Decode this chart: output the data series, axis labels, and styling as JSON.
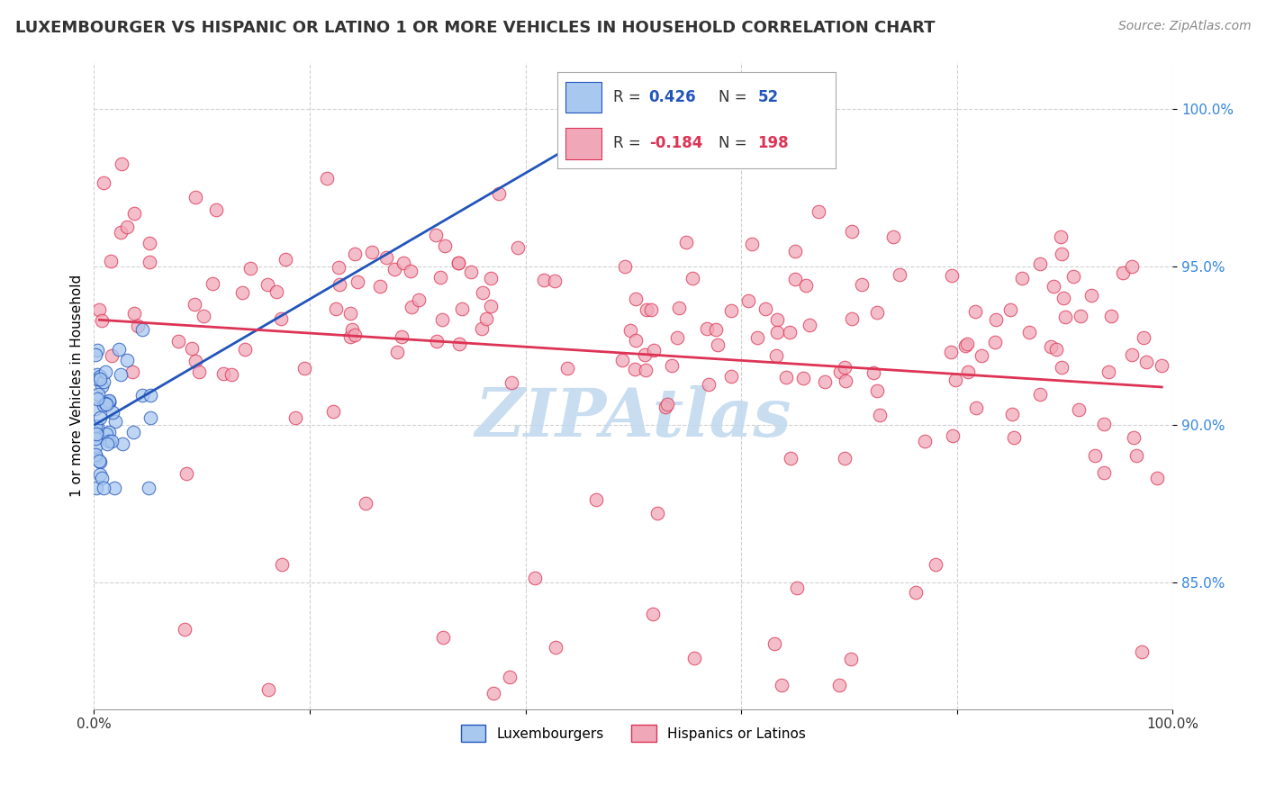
{
  "title": "LUXEMBOURGER VS HISPANIC OR LATINO 1 OR MORE VEHICLES IN HOUSEHOLD CORRELATION CHART",
  "source": "Source: ZipAtlas.com",
  "ylabel": "1 or more Vehicles in Household",
  "xlim": [
    0.0,
    100.0
  ],
  "ylim": [
    81.0,
    101.5
  ],
  "blue_R": 0.426,
  "blue_N": 52,
  "pink_R": -0.184,
  "pink_N": 198,
  "blue_color": "#a8c8f0",
  "pink_color": "#f0a8b8",
  "blue_line_color": "#2255bb",
  "pink_line_color": "#dd3355",
  "watermark": "ZIPAtlas",
  "watermark_color": "#c0d8ee",
  "background_color": "#ffffff",
  "grid_color": "#cccccc"
}
